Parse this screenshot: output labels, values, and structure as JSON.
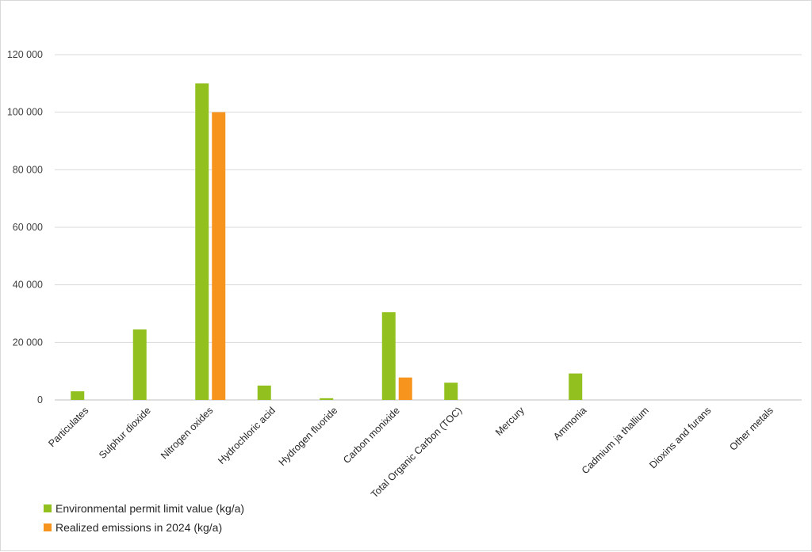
{
  "chart_data": {
    "type": "bar",
    "categories": [
      "Particulates",
      "Sulphur dioxide",
      "Nitrogen oxides",
      "Hydrochloric acid",
      "Hydrogen fluoride",
      "Carbon monixide",
      "Total Organic Carbon (TOC)",
      "Mercury",
      "Ammonia",
      "Cadmium ja thallium",
      "Dioxins and furans",
      "Other metals"
    ],
    "series": [
      {
        "name": "Environmental permit limit value (kg/a)",
        "color": "#92c01f",
        "values": [
          3000,
          24500,
          110000,
          5000,
          600,
          30500,
          6000,
          0,
          9200,
          0,
          0,
          0
        ]
      },
      {
        "name": "Realized emissions in 2024 (kg/a)",
        "color": "#f7941d",
        "values": [
          0,
          0,
          100000,
          0,
          0,
          7800,
          0,
          0,
          0,
          0,
          0,
          0
        ]
      }
    ],
    "yticks": [
      "0",
      "20 000",
      "40 000",
      "60 000",
      "80 000",
      "100 000",
      "120 000"
    ],
    "ylim": [
      0,
      120000
    ],
    "grid": true,
    "legend_position": "bottom-left"
  }
}
